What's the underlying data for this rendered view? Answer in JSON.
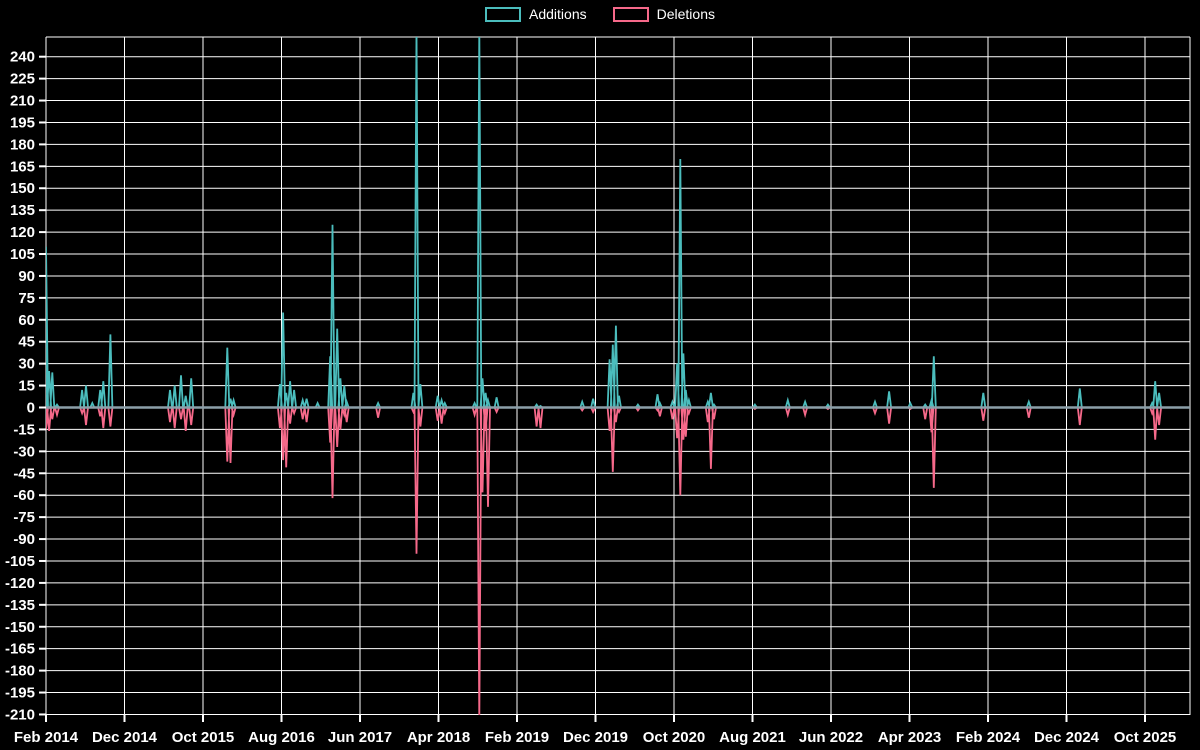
{
  "chart_data": {
    "type": "line",
    "title": "",
    "legend": [
      "Additions",
      "Deletions"
    ],
    "legend_position": "top-center",
    "grid": true,
    "background_color": "#000000",
    "grid_color": "#ffffff",
    "text_color": "#ffffff",
    "zero_line_color": "#8c9fa9",
    "series": [
      {
        "name": "Additions",
        "color": "#4bbdbd",
        "direction": "up"
      },
      {
        "name": "Deletions",
        "color": "#f6698a",
        "direction": "down"
      }
    ],
    "x_axis": {
      "tick_labels": [
        "Feb 2014",
        "Dec 2014",
        "Oct 2015",
        "Aug 2016",
        "Jun 2017",
        "Apr 2018",
        "Feb 2019",
        "Dec 2019",
        "Oct 2020",
        "Aug 2021",
        "Jun 2022",
        "Apr 2023",
        "Feb 2024",
        "Dec 2024",
        "Oct 2025"
      ],
      "months_between_labeled_ticks": 10
    },
    "y_axis": {
      "min": -210,
      "max": 240,
      "step": 15
    },
    "events_note": "Each event is [m, additions, deletions] where m = months after Feb 2014. Series baseline is 0 between events. Spikes at m=47.2 and m=55.2 (additions ~260) and m=55.2 (deletions ~-215) are clipped by the plot edges (visible clip at about +253 / -211).",
    "events": [
      [
        0.0,
        110,
        -15
      ],
      [
        0.4,
        25,
        -16
      ],
      [
        0.8,
        24,
        -8
      ],
      [
        1.4,
        2,
        -5
      ],
      [
        4.6,
        12,
        -4
      ],
      [
        5.1,
        15,
        -12
      ],
      [
        5.9,
        3,
        0
      ],
      [
        6.9,
        12,
        -6
      ],
      [
        7.3,
        18,
        -14
      ],
      [
        8.2,
        50,
        -13
      ],
      [
        15.8,
        12,
        -10
      ],
      [
        16.4,
        15,
        -14
      ],
      [
        17.2,
        22,
        -8
      ],
      [
        17.8,
        8,
        -16
      ],
      [
        18.5,
        20,
        -12
      ],
      [
        23.1,
        41,
        -37
      ],
      [
        23.5,
        6,
        -38
      ],
      [
        23.9,
        5,
        -5
      ],
      [
        29.8,
        16,
        -14
      ],
      [
        30.2,
        65,
        -36
      ],
      [
        30.6,
        10,
        -41
      ],
      [
        31.1,
        18,
        -11
      ],
      [
        31.6,
        12,
        -4
      ],
      [
        32.7,
        5,
        -8
      ],
      [
        33.2,
        6,
        -10
      ],
      [
        34.6,
        3,
        0
      ],
      [
        36.2,
        35,
        -24
      ],
      [
        36.5,
        125,
        -62
      ],
      [
        37.1,
        54,
        -27
      ],
      [
        37.5,
        20,
        -15
      ],
      [
        38.0,
        15,
        -5
      ],
      [
        38.3,
        4,
        -10
      ],
      [
        42.3,
        3,
        -7
      ],
      [
        46.8,
        10,
        -3
      ],
      [
        47.2,
        260,
        -100
      ],
      [
        47.7,
        16,
        -13
      ],
      [
        49.9,
        8,
        -9
      ],
      [
        50.4,
        5,
        -11
      ],
      [
        50.8,
        3,
        -4
      ],
      [
        54.6,
        3,
        -5
      ],
      [
        55.2,
        260,
        -215
      ],
      [
        55.6,
        20,
        -58
      ],
      [
        56.0,
        10,
        -16
      ],
      [
        56.3,
        5,
        -68
      ],
      [
        57.4,
        7,
        -3
      ],
      [
        62.5,
        2,
        -13
      ],
      [
        63.0,
        1,
        -14
      ],
      [
        68.3,
        4,
        -2
      ],
      [
        69.7,
        6,
        -3
      ],
      [
        71.8,
        33,
        -16
      ],
      [
        72.2,
        43,
        -44
      ],
      [
        72.6,
        56,
        -10
      ],
      [
        73.0,
        8,
        -3
      ],
      [
        75.4,
        2,
        -2
      ],
      [
        77.9,
        9,
        -2
      ],
      [
        78.2,
        3,
        -6
      ],
      [
        79.8,
        4,
        -8
      ],
      [
        80.4,
        30,
        -21
      ],
      [
        80.8,
        170,
        -60
      ],
      [
        81.2,
        37,
        -22
      ],
      [
        81.5,
        12,
        -20
      ],
      [
        81.9,
        5,
        -4
      ],
      [
        84.3,
        4,
        -10
      ],
      [
        84.7,
        10,
        -42
      ],
      [
        85.1,
        2,
        -8
      ],
      [
        90.3,
        2,
        -1
      ],
      [
        94.5,
        5,
        -5
      ],
      [
        96.7,
        4,
        -5
      ],
      [
        99.6,
        2,
        -1
      ],
      [
        105.6,
        4,
        -4
      ],
      [
        107.4,
        11,
        -11
      ],
      [
        110.1,
        3,
        -1
      ],
      [
        112.0,
        2,
        -8
      ],
      [
        112.8,
        5,
        -17
      ],
      [
        113.1,
        35,
        -55
      ],
      [
        119.4,
        10,
        -9
      ],
      [
        125.2,
        4,
        -7
      ],
      [
        131.7,
        13,
        -12
      ],
      [
        140.9,
        3,
        -4
      ],
      [
        141.3,
        18,
        -22
      ],
      [
        141.8,
        10,
        -12
      ]
    ]
  }
}
